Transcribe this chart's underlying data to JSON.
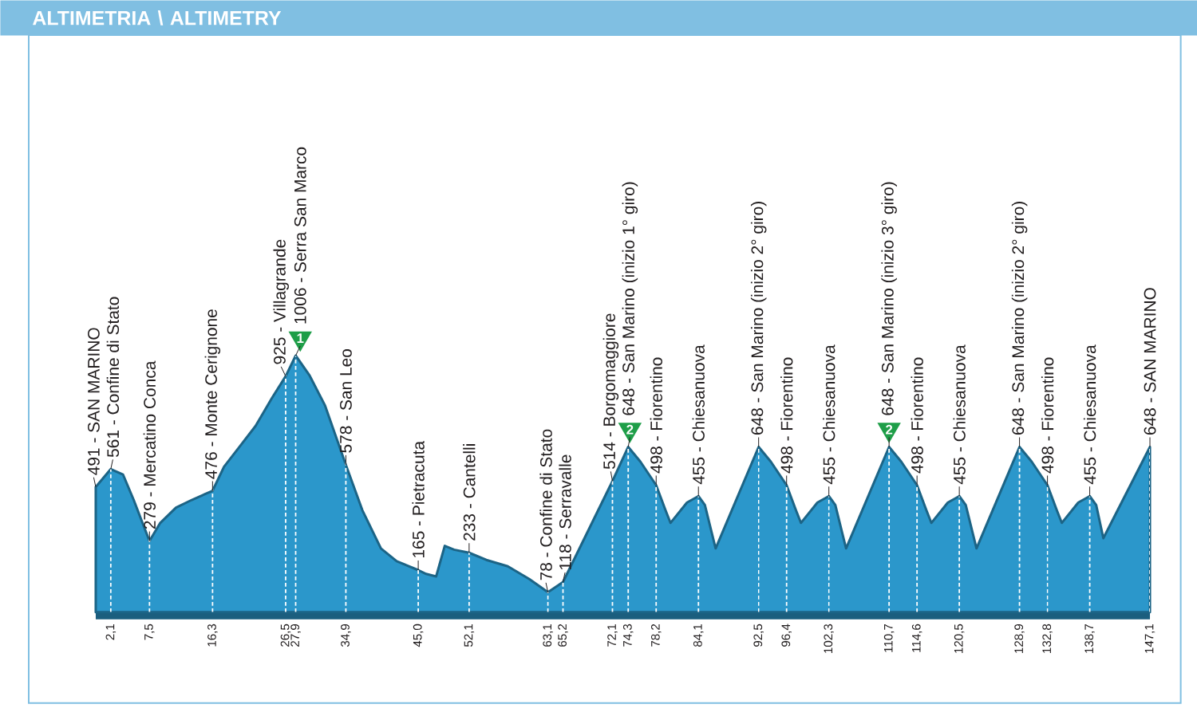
{
  "chart_data": {
    "type": "area",
    "title": "ALTIMETRIA \\ ALTIMETRY",
    "x": [
      0,
      2.1,
      3.8,
      5.3,
      6.8,
      7.5,
      9.0,
      11.2,
      13.4,
      16.3,
      17.9,
      20.1,
      22.3,
      24.6,
      26.5,
      27.9,
      29.8,
      32.0,
      34.9,
      37.2,
      39.8,
      42.0,
      45.0,
      46.1,
      47.5,
      48.7,
      50.0,
      52.1,
      54.5,
      57.5,
      60.5,
      62.0,
      63.1,
      65.2,
      72.1,
      74.3,
      76.0,
      78.2,
      79.5,
      80.2,
      82.5,
      84.1,
      85.0,
      86.5,
      92.5,
      94.2,
      96.4,
      97.7,
      98.4,
      100.7,
      102.3,
      103.2,
      104.7,
      110.7,
      112.4,
      114.6,
      115.9,
      116.6,
      118.9,
      120.5,
      121.4,
      122.9,
      128.9,
      130.6,
      132.8,
      134.1,
      134.8,
      137.1,
      138.7,
      139.6,
      140.6,
      147.1
    ],
    "values": [
      491,
      561,
      540,
      440,
      330,
      279,
      350,
      410,
      440,
      476,
      570,
      650,
      730,
      840,
      925,
      1006,
      930,
      810,
      578,
      400,
      250,
      200,
      165,
      150,
      140,
      260,
      245,
      233,
      205,
      180,
      130,
      100,
      78,
      118,
      514,
      648,
      590,
      498,
      400,
      350,
      430,
      455,
      420,
      250,
      648,
      590,
      498,
      400,
      350,
      430,
      455,
      420,
      250,
      648,
      590,
      498,
      400,
      350,
      430,
      455,
      420,
      250,
      648,
      590,
      498,
      400,
      350,
      430,
      455,
      420,
      290,
      648
    ],
    "value_labels": [
      "491 - SAN MARINO",
      "561 - Confine di Stato",
      null,
      null,
      null,
      "279 - Mercatino Conca",
      null,
      null,
      null,
      "476 - Monte Cerignone",
      null,
      null,
      null,
      null,
      "925 - Villagrande",
      "1006 - Serra San Marco",
      null,
      null,
      "578 - San Leo",
      null,
      null,
      null,
      "165 - Pietracuta",
      null,
      null,
      null,
      null,
      "233 - Cantelli",
      null,
      null,
      null,
      null,
      "78 - Confine di Stato",
      "118 - Serravalle",
      "514 - Borgomaggiore",
      "648 - San Marino (inizio 1° giro)",
      null,
      "498 - Fiorentino",
      null,
      null,
      null,
      "455 - Chiesanuova",
      null,
      null,
      "648 - San Marino (inizio 2° giro)",
      null,
      "498 - Fiorentino",
      null,
      null,
      null,
      "455 - Chiesanuova",
      null,
      null,
      "648 - San Marino (inizio 3° giro)",
      null,
      "498 - Fiorentino",
      null,
      null,
      null,
      "455 - Chiesanuova",
      null,
      null,
      "648 - San Marino (inizio 2° giro)",
      null,
      "498 - Fiorentino",
      null,
      null,
      null,
      "455 - Chiesanuova",
      null,
      null,
      "648 - SAN MARINO"
    ],
    "color": "#2b97cb",
    "xlim": [
      0,
      147.1
    ],
    "xticks": [
      {
        "value": 2.1,
        "label": "2,1"
      },
      {
        "value": 7.5,
        "label": "7,5"
      },
      {
        "value": 16.3,
        "label": "16,3"
      },
      {
        "value": 26.5,
        "label": "26,5"
      },
      {
        "value": 27.9,
        "label": "27,9"
      },
      {
        "value": 34.9,
        "label": "34,9"
      },
      {
        "value": 45.0,
        "label": "45,0"
      },
      {
        "value": 52.1,
        "label": "52,1"
      },
      {
        "value": 63.1,
        "label": "63,1"
      },
      {
        "value": 65.2,
        "label": "65,2"
      },
      {
        "value": 72.1,
        "label": "72,1"
      },
      {
        "value": 74.3,
        "label": "74,3"
      },
      {
        "value": 78.2,
        "label": "78,2"
      },
      {
        "value": 84.1,
        "label": "84,1"
      },
      {
        "value": 92.5,
        "label": "92,5"
      },
      {
        "value": 96.4,
        "label": "96,4"
      },
      {
        "value": 102.3,
        "label": "102,3"
      },
      {
        "value": 110.7,
        "label": "110,7"
      },
      {
        "value": 114.6,
        "label": "114,6"
      },
      {
        "value": 120.5,
        "label": "120,5"
      },
      {
        "value": 128.9,
        "label": "128,9"
      },
      {
        "value": 132.8,
        "label": "132,8"
      },
      {
        "value": 138.7,
        "label": "138,7"
      },
      {
        "value": 147.1,
        "label": "147,1"
      }
    ],
    "ylim": [
      0,
      2000
    ],
    "tick_labels": "x",
    "grid": "x",
    "annotations": [
      {
        "text": "1",
        "x": 27.9,
        "y": 1006
      },
      {
        "text": "2",
        "x": 74.3,
        "y": 648
      },
      {
        "text": "2",
        "x": 110.7,
        "y": 648
      }
    ]
  }
}
